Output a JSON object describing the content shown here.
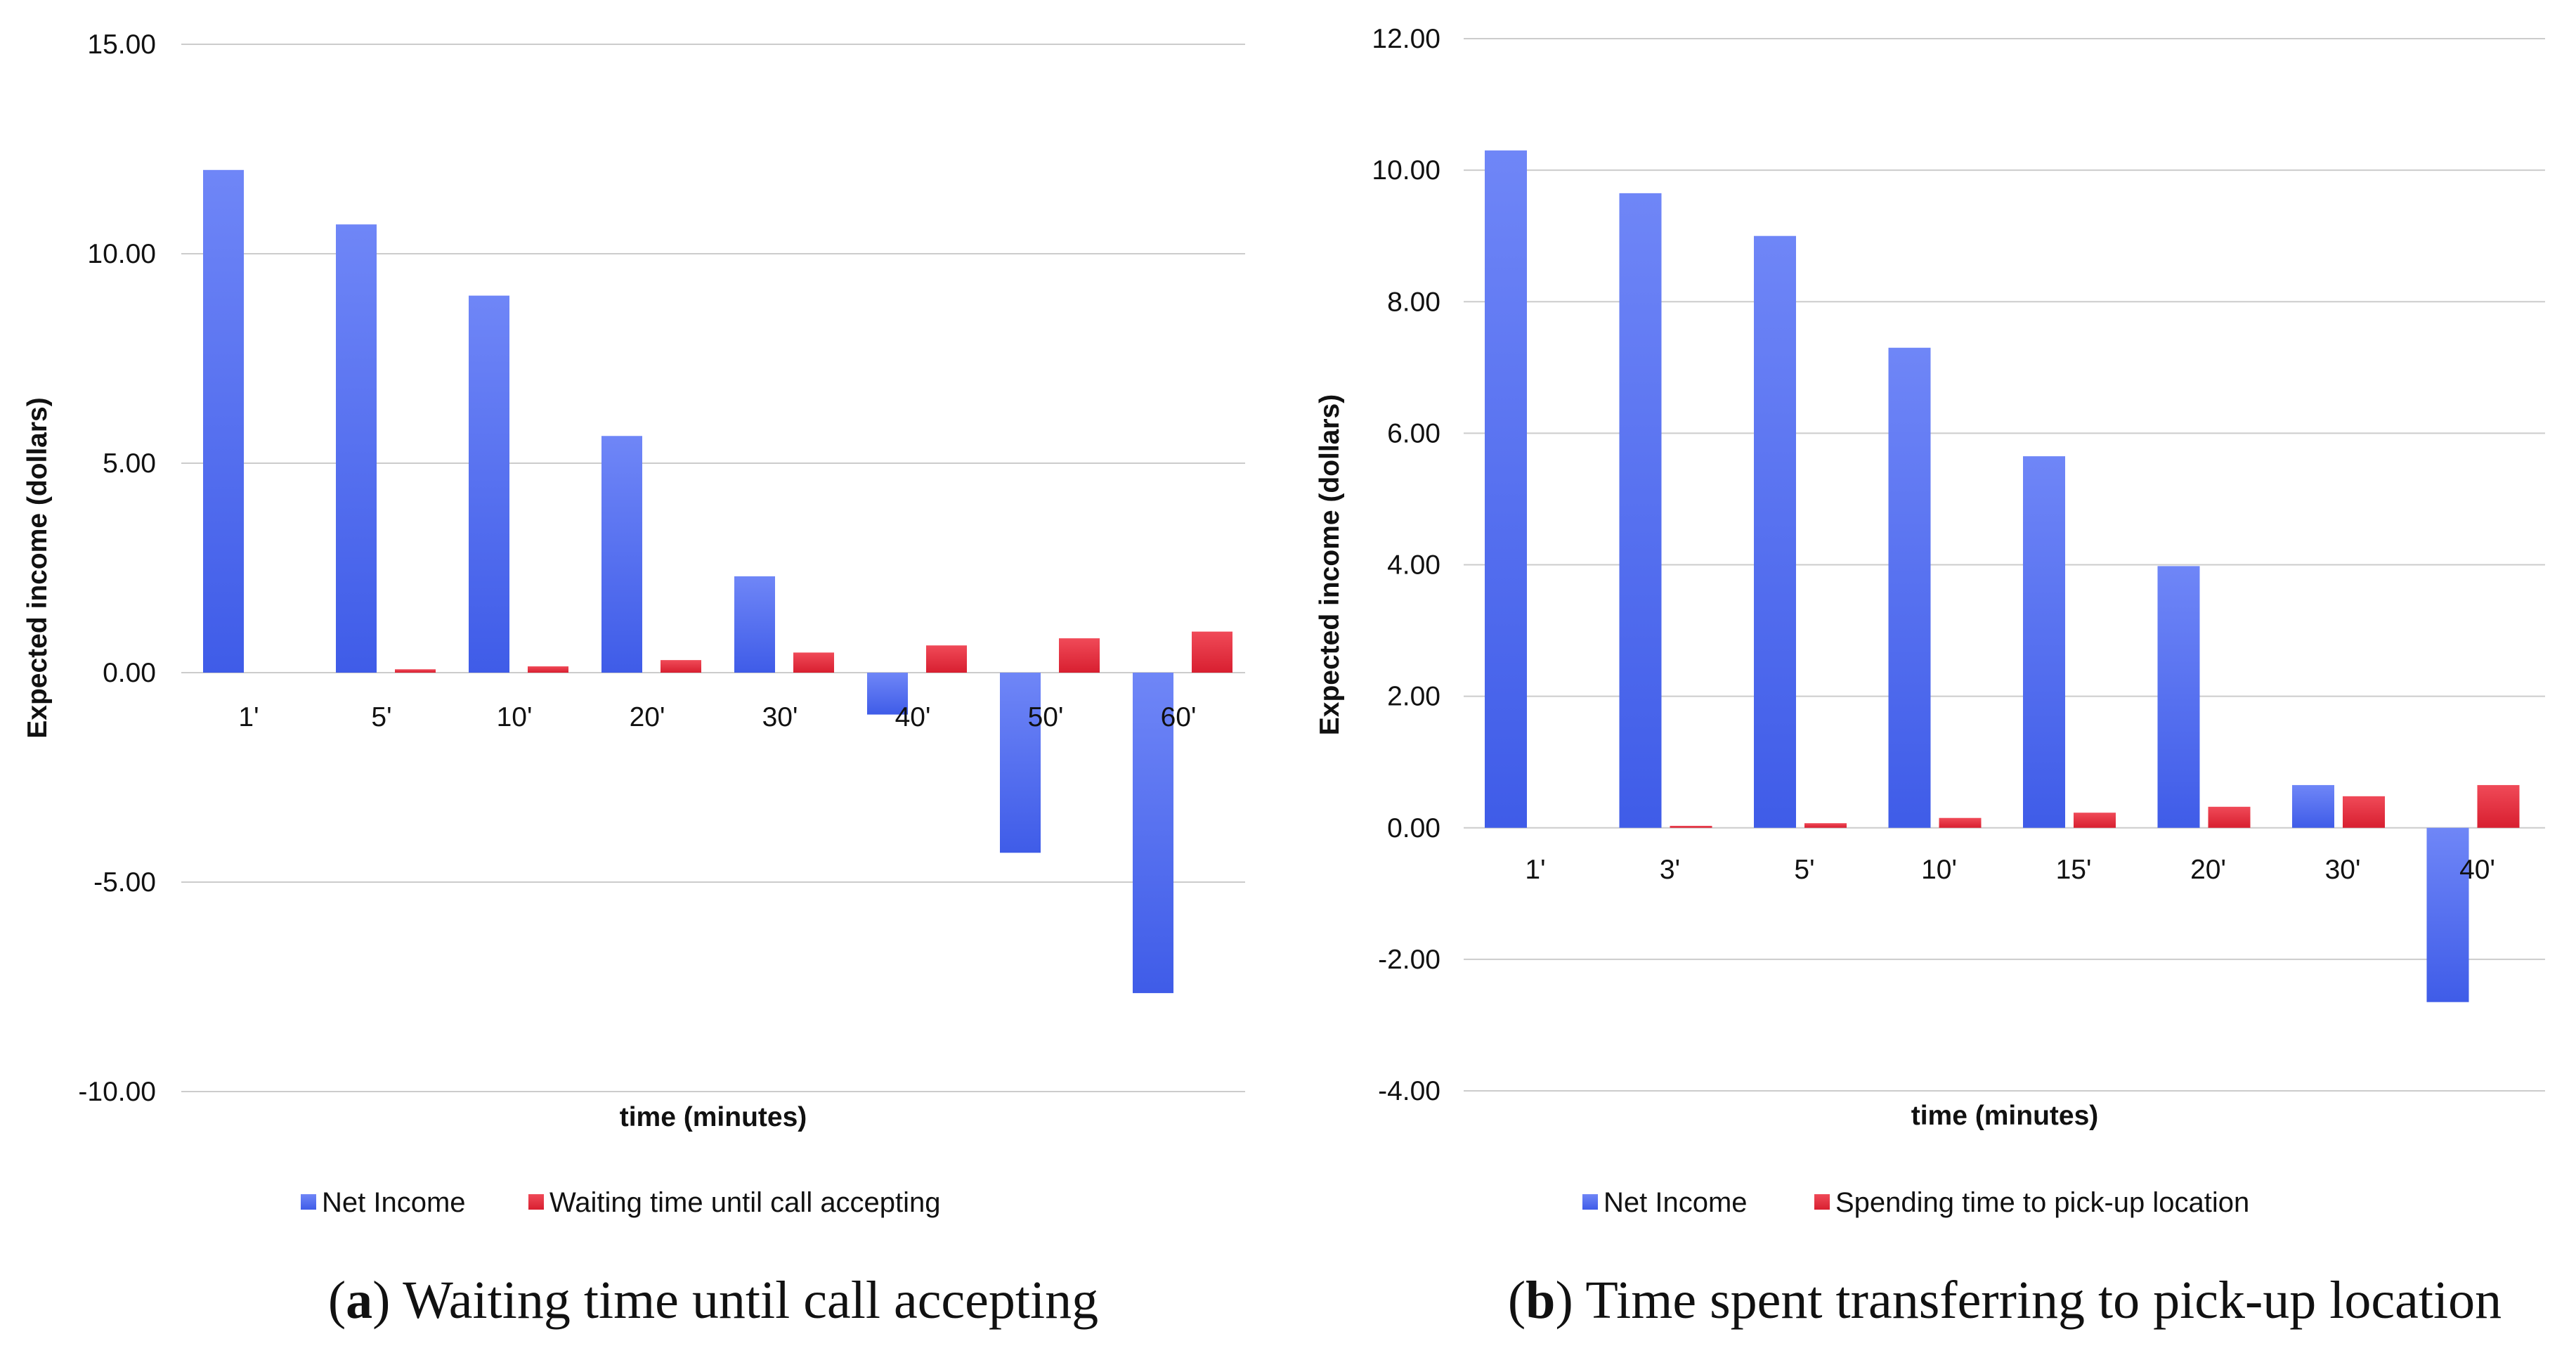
{
  "chart_data": [
    {
      "id": "a",
      "type": "bar",
      "categories": [
        "1'",
        "5'",
        "10'",
        "20'",
        "30'",
        "40'",
        "50'",
        "60'"
      ],
      "series": [
        {
          "name": "Net Income",
          "color": "#4a68f0",
          "values": [
            12.0,
            10.7,
            9.0,
            5.65,
            2.3,
            -1.0,
            -4.3,
            -7.65
          ]
        },
        {
          "name": "Waiting time until call accepting",
          "color": "#ee2a3c",
          "values": [
            0.0,
            0.08,
            0.15,
            0.3,
            0.48,
            0.65,
            0.82,
            0.98
          ]
        }
      ],
      "ylim": [
        -10,
        15
      ],
      "yticks": [
        15,
        10,
        5,
        0,
        -5,
        -10
      ],
      "ytick_labels": [
        "15.00",
        "10.00",
        "5.00",
        "0.00",
        "-5.00",
        "-10.00"
      ],
      "xlabel": "time (minutes)",
      "ylabel": "Expected income (dollars)",
      "legend_position": "bottom",
      "grid": true,
      "caption_letter": "a",
      "caption_text": " Waiting time until call accepting"
    },
    {
      "id": "b",
      "type": "bar",
      "categories": [
        "1'",
        "3'",
        "5'",
        "10'",
        "15'",
        "20'",
        "30'",
        "40'"
      ],
      "series": [
        {
          "name": "Net Income",
          "color": "#4a68f0",
          "values": [
            10.3,
            9.65,
            9.0,
            7.3,
            5.65,
            3.98,
            0.65,
            -2.65
          ]
        },
        {
          "name": "Spending time to pick-up location",
          "color": "#ee2a3c",
          "values": [
            0.0,
            0.03,
            0.07,
            0.15,
            0.23,
            0.32,
            0.48,
            0.65
          ]
        }
      ],
      "ylim": [
        -4,
        12
      ],
      "yticks": [
        12,
        10,
        8,
        6,
        4,
        2,
        0,
        -2,
        -4
      ],
      "ytick_labels": [
        "12.00",
        "10.00",
        "8.00",
        "6.00",
        "4.00",
        "2.00",
        "0.00",
        "-2.00",
        "-4.00"
      ],
      "xlabel": "time (minutes)",
      "ylabel": "Expected income (dollars)",
      "legend_position": "bottom",
      "grid": true,
      "caption_letter": "b",
      "caption_text": " Time spent transferring to pick-up location"
    }
  ]
}
